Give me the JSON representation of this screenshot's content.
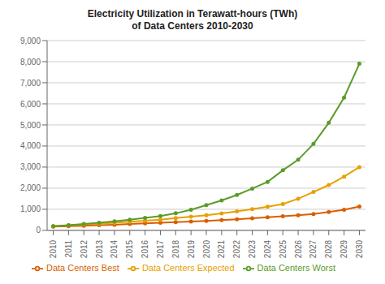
{
  "chart_data": {
    "type": "line",
    "title": "Electricity Utilization in Terawatt-hours (TWh)\nof Data Centers 2010-2030",
    "x": [
      2010,
      2011,
      2012,
      2013,
      2014,
      2015,
      2016,
      2017,
      2018,
      2019,
      2020,
      2021,
      2022,
      2023,
      2024,
      2025,
      2026,
      2027,
      2028,
      2029,
      2030
    ],
    "series": [
      {
        "name": "Data Centers Best",
        "color": "#D95F02",
        "marker": "circle",
        "values": [
          180,
          200,
          220,
          245,
          270,
          300,
          330,
          365,
          395,
          420,
          450,
          490,
          530,
          575,
          620,
          665,
          720,
          775,
          870,
          980,
          1130
        ]
      },
      {
        "name": "Data Centers Expected",
        "color": "#E8A000",
        "marker": "circle",
        "values": [
          200,
          235,
          275,
          315,
          360,
          410,
          460,
          510,
          580,
          650,
          720,
          800,
          900,
          1010,
          1120,
          1250,
          1500,
          1820,
          2150,
          2550,
          3000
        ]
      },
      {
        "name": "Data Centers Worst",
        "color": "#5B9B2A",
        "marker": "circle",
        "values": [
          200,
          245,
          305,
          365,
          430,
          510,
          590,
          680,
          810,
          980,
          1200,
          1420,
          1680,
          1980,
          2300,
          2850,
          3350,
          4100,
          5100,
          6300,
          7900
        ]
      }
    ],
    "xlim": [
      2009.6,
      2030.4
    ],
    "xticks": [
      2010,
      2011,
      2012,
      2013,
      2014,
      2015,
      2016,
      2017,
      2018,
      2019,
      2020,
      2021,
      2022,
      2023,
      2024,
      2025,
      2026,
      2027,
      2028,
      2029,
      2030
    ],
    "ylim": [
      0,
      9000
    ],
    "yticks": [
      0,
      {
        "value": 1000,
        "label": "1,000"
      },
      {
        "value": 2000,
        "label": "2,000"
      },
      {
        "value": 3000,
        "label": "3,000"
      },
      {
        "value": 4000,
        "label": "4,000"
      },
      {
        "value": 5000,
        "label": "5,000"
      },
      {
        "value": 6000,
        "label": "6,000"
      },
      {
        "value": 7000,
        "label": "7,000"
      },
      {
        "value": 8000,
        "label": "8,000"
      },
      {
        "value": 9000,
        "label": "9,000"
      }
    ],
    "grid": "y",
    "legend": "bottom"
  }
}
